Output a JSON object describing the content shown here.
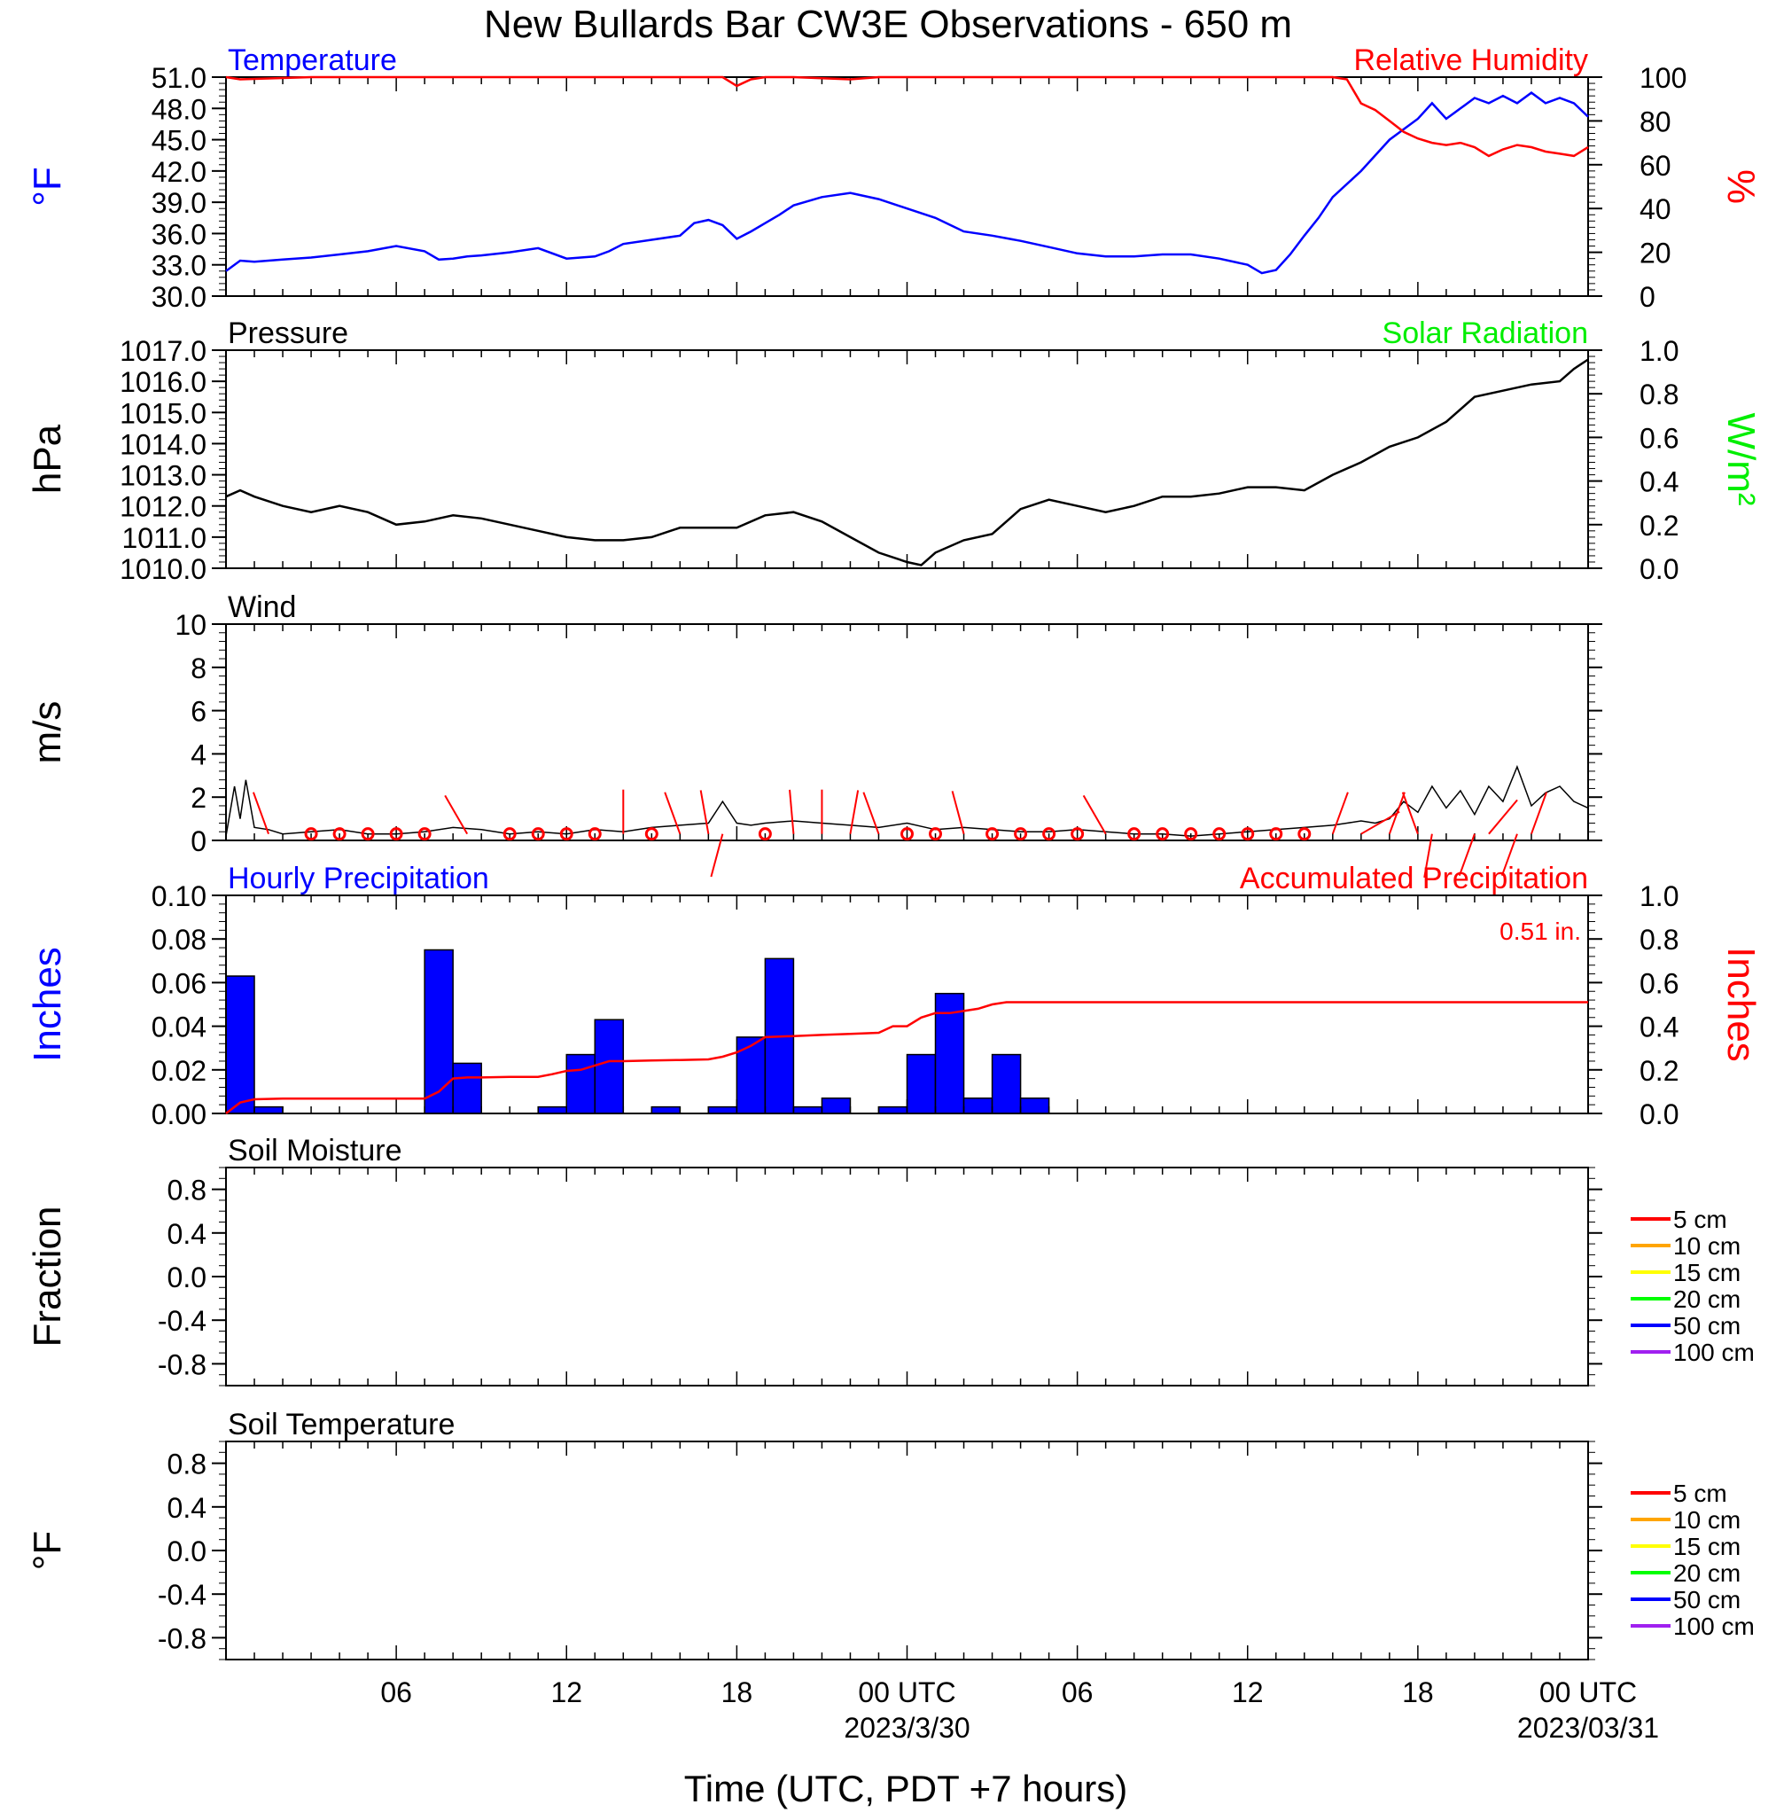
{
  "title": "New Bullards Bar CW3E Observations - 650 m",
  "xlabel": "Time (UTC, PDT +7 hours)",
  "time_axis": {
    "start": "2023-03-29 01:00 UTC",
    "end": "2023-03-31 01:00 UTC",
    "tick_labels": [
      {
        "hour": 6,
        "label": "06",
        "sublabel": ""
      },
      {
        "hour": 12,
        "label": "12",
        "sublabel": ""
      },
      {
        "hour": 18,
        "label": "18",
        "sublabel": ""
      },
      {
        "hour": 24,
        "label": "00 UTC",
        "sublabel": "2023/3/30"
      },
      {
        "hour": 30,
        "label": "06",
        "sublabel": ""
      },
      {
        "hour": 36,
        "label": "12",
        "sublabel": ""
      },
      {
        "hour": 42,
        "label": "18",
        "sublabel": ""
      },
      {
        "hour": 48,
        "label": "00 UTC",
        "sublabel": "2023/03/31"
      }
    ]
  },
  "colors": {
    "temperature": "#0000ff",
    "humidity": "#ff0000",
    "pressure": "#000000",
    "solar": "#00ee00",
    "wind": "#000000",
    "wind_barb": "#ff0000",
    "precip_bar": "#0000ff",
    "accum": "#ff0000"
  },
  "chart_data": [
    {
      "id": "temp_rh",
      "type": "line",
      "title_left": "Temperature",
      "title_right": "Relative Humidity",
      "ylabel_left": "°F",
      "ylabel_right": "%",
      "ylim_left": [
        30,
        51
      ],
      "yticks_left": [
        "30.0",
        "33.0",
        "36.0",
        "39.0",
        "42.0",
        "45.0",
        "48.0",
        "51.0"
      ],
      "ylim_right": [
        0,
        100
      ],
      "yticks_right": [
        "0",
        "20",
        "40",
        "60",
        "80",
        "100"
      ],
      "series": [
        {
          "name": "Temperature",
          "axis": "left",
          "x": [
            0,
            0.5,
            1,
            2,
            3,
            4,
            5,
            6,
            7,
            7.5,
            8,
            8.5,
            9,
            10,
            11,
            12,
            13,
            13.5,
            14,
            15,
            16,
            16.5,
            17,
            17.5,
            18,
            18.5,
            19,
            19.5,
            20,
            21,
            22,
            23,
            24,
            25,
            26,
            27,
            28,
            29,
            30,
            31,
            32,
            33,
            34,
            35,
            36,
            36.5,
            37,
            37.5,
            38,
            38.5,
            39,
            40,
            41,
            42,
            42.5,
            43,
            43.5,
            44,
            44.5,
            45,
            45.5,
            46,
            46.5,
            47,
            47.5,
            48
          ],
          "y": [
            32.4,
            33.4,
            33.3,
            33.5,
            33.7,
            34.0,
            34.3,
            34.8,
            34.3,
            33.5,
            33.6,
            33.8,
            33.9,
            34.2,
            34.6,
            33.6,
            33.8,
            34.3,
            35.0,
            35.4,
            35.8,
            37.0,
            37.3,
            36.8,
            35.5,
            36.2,
            37.0,
            37.8,
            38.7,
            39.5,
            39.9,
            39.3,
            38.4,
            37.5,
            36.2,
            35.8,
            35.3,
            34.7,
            34.1,
            33.8,
            33.8,
            34.0,
            34.0,
            33.6,
            33.0,
            32.2,
            32.5,
            34.0,
            35.8,
            37.5,
            39.5,
            42.0,
            45.0,
            47.0,
            48.5,
            47.0,
            48.0,
            49.0,
            48.5,
            49.2,
            48.5,
            49.5,
            48.5,
            49.0,
            48.5,
            47.2
          ]
        },
        {
          "name": "Relative Humidity",
          "axis": "right",
          "x": [
            0,
            0.5,
            3,
            5,
            6,
            10,
            17.5,
            18,
            18.5,
            19,
            20,
            22,
            23,
            24,
            26,
            30,
            35,
            38,
            39,
            39.5,
            40,
            40.5,
            41,
            41.5,
            42,
            42.5,
            43,
            43.5,
            44,
            44.5,
            45,
            45.5,
            46,
            46.5,
            47,
            47.5,
            48
          ],
          "y": [
            100,
            99,
            100,
            100,
            100,
            100,
            100,
            96,
            99,
            100,
            100,
            99,
            100,
            100,
            100,
            100,
            100,
            100,
            100,
            99,
            88,
            85,
            80,
            75,
            72,
            70,
            69,
            70,
            68,
            64,
            67,
            69,
            68,
            66,
            65,
            64,
            68
          ]
        }
      ]
    },
    {
      "id": "pressure",
      "type": "line",
      "title_left": "Pressure",
      "title_right": "Solar Radiation",
      "ylabel_left": "hPa",
      "ylabel_right": "W/m2",
      "ylim_left": [
        1010,
        1017
      ],
      "yticks_left": [
        "1010.0",
        "1011.0",
        "1012.0",
        "1013.0",
        "1014.0",
        "1015.0",
        "1016.0",
        "1017.0"
      ],
      "ylim_right": [
        0,
        1
      ],
      "yticks_right": [
        "0.0",
        "0.2",
        "0.4",
        "0.6",
        "0.8",
        "1.0"
      ],
      "series": [
        {
          "name": "Pressure",
          "axis": "left",
          "x": [
            0,
            0.5,
            1,
            2,
            3,
            4,
            5,
            6,
            7,
            8,
            9,
            10,
            11,
            12,
            13,
            14,
            15,
            16,
            17,
            18,
            19,
            20,
            21,
            22,
            23,
            24,
            24.5,
            25,
            26,
            27,
            27.5,
            28,
            29,
            30,
            31,
            32,
            33,
            34,
            35,
            36,
            37,
            38,
            39,
            40,
            41,
            42,
            43,
            44,
            45,
            46,
            47,
            47.5,
            48
          ],
          "y": [
            1012.3,
            1012.5,
            1012.3,
            1012.0,
            1011.8,
            1012.0,
            1011.8,
            1011.4,
            1011.5,
            1011.7,
            1011.6,
            1011.4,
            1011.2,
            1011.0,
            1010.9,
            1010.9,
            1011.0,
            1011.3,
            1011.3,
            1011.3,
            1011.7,
            1011.8,
            1011.5,
            1011.0,
            1010.5,
            1010.2,
            1010.1,
            1010.5,
            1010.9,
            1011.1,
            1011.5,
            1011.9,
            1012.2,
            1012.0,
            1011.8,
            1012.0,
            1012.3,
            1012.3,
            1012.4,
            1012.6,
            1012.6,
            1012.5,
            1013.0,
            1013.4,
            1013.9,
            1014.2,
            1014.7,
            1015.5,
            1015.7,
            1015.9,
            1016.0,
            1016.4,
            1016.7
          ]
        }
      ]
    },
    {
      "id": "wind",
      "type": "line",
      "title_left": "Wind",
      "ylabel_left": "m/s",
      "ylim_left": [
        0,
        10
      ],
      "yticks_left": [
        "0",
        "2",
        "4",
        "6",
        "8",
        "10"
      ],
      "series": [
        {
          "name": "Wind speed",
          "axis": "left",
          "x": [
            0,
            0.3,
            0.5,
            0.7,
            1,
            1.5,
            2,
            3,
            4,
            5,
            6,
            7,
            8,
            9,
            10,
            11,
            12,
            13,
            14,
            15,
            16,
            17,
            17.5,
            18,
            18.5,
            19,
            20,
            21,
            22,
            23,
            24,
            25,
            26,
            27,
            28,
            29,
            30,
            31,
            32,
            33,
            34,
            35,
            36,
            37,
            38,
            39,
            39.5,
            40,
            40.5,
            41,
            41.5,
            42,
            42.5,
            43,
            43.5,
            44,
            44.5,
            45,
            45.5,
            46,
            46.5,
            47,
            47.5,
            48
          ],
          "y": [
            0.2,
            2.5,
            1.0,
            2.8,
            0.6,
            0.5,
            0.3,
            0.4,
            0.5,
            0.3,
            0.3,
            0.4,
            0.6,
            0.5,
            0.3,
            0.4,
            0.3,
            0.5,
            0.4,
            0.6,
            0.7,
            0.8,
            1.8,
            0.8,
            0.7,
            0.8,
            0.9,
            0.8,
            0.7,
            0.6,
            0.8,
            0.5,
            0.6,
            0.5,
            0.4,
            0.4,
            0.5,
            0.4,
            0.3,
            0.3,
            0.2,
            0.3,
            0.4,
            0.5,
            0.6,
            0.7,
            0.8,
            0.9,
            0.8,
            1.0,
            1.8,
            1.3,
            2.5,
            1.5,
            2.3,
            1.2,
            2.5,
            1.8,
            3.4,
            1.6,
            2.2,
            2.5,
            1.8,
            1.5
          ]
        }
      ],
      "barbs": [
        {
          "x": 1.5,
          "dir": 340
        },
        {
          "x": 3,
          "calm": true
        },
        {
          "x": 4,
          "calm": true
        },
        {
          "x": 5,
          "calm": true
        },
        {
          "x": 6,
          "calm": true
        },
        {
          "x": 7,
          "calm": true
        },
        {
          "x": 8.5,
          "dir": 330
        },
        {
          "x": 10,
          "calm": true
        },
        {
          "x": 11,
          "calm": true
        },
        {
          "x": 12,
          "calm": true
        },
        {
          "x": 13,
          "calm": true
        },
        {
          "x": 14,
          "dir": 360
        },
        {
          "x": 15,
          "calm": true
        },
        {
          "x": 16,
          "dir": 340
        },
        {
          "x": 17,
          "dir": 350
        },
        {
          "x": 17.5,
          "dir": 195
        },
        {
          "x": 19,
          "calm": true
        },
        {
          "x": 20,
          "dir": 355
        },
        {
          "x": 21,
          "dir": 360
        },
        {
          "x": 22,
          "dir": 10
        },
        {
          "x": 23,
          "dir": 340
        },
        {
          "x": 24,
          "calm": true
        },
        {
          "x": 25,
          "calm": true
        },
        {
          "x": 26,
          "dir": 345
        },
        {
          "x": 27,
          "calm": true
        },
        {
          "x": 28,
          "calm": true
        },
        {
          "x": 29,
          "calm": true
        },
        {
          "x": 30,
          "calm": true
        },
        {
          "x": 31,
          "dir": 330
        },
        {
          "x": 32,
          "calm": true
        },
        {
          "x": 33,
          "calm": true
        },
        {
          "x": 34,
          "calm": true
        },
        {
          "x": 35,
          "calm": true
        },
        {
          "x": 36,
          "calm": true
        },
        {
          "x": 37,
          "calm": true
        },
        {
          "x": 38,
          "calm": true
        },
        {
          "x": 39,
          "dir": 20
        },
        {
          "x": 40,
          "dir": 60
        },
        {
          "x": 41,
          "dir": 20
        },
        {
          "x": 42,
          "dir": 340
        },
        {
          "x": 42.5,
          "dir": 190
        },
        {
          "x": 44,
          "dir": 200
        },
        {
          "x": 44.5,
          "dir": 40
        },
        {
          "x": 45.5,
          "dir": 200
        },
        {
          "x": 46,
          "dir": 20
        }
      ]
    },
    {
      "id": "precip",
      "type": "bar",
      "title_left": "Hourly Precipitation",
      "title_right": "Accumulated Precipitation",
      "total_label": "0.51 in.",
      "ylabel_left": "Inches",
      "ylabel_right": "Inches",
      "ylim_left": [
        0,
        0.1
      ],
      "yticks_left": [
        "0.00",
        "0.02",
        "0.04",
        "0.06",
        "0.08",
        "0.10"
      ],
      "ylim_right": [
        0,
        1
      ],
      "yticks_right": [
        "0.0",
        "0.2",
        "0.4",
        "0.6",
        "0.8",
        "1.0"
      ],
      "series": [
        {
          "name": "Hourly Precipitation",
          "axis": "left",
          "x": [
            0,
            1,
            7,
            8,
            11,
            12,
            13,
            15,
            17,
            18,
            19,
            20,
            21,
            23,
            24,
            25,
            26,
            27,
            28
          ],
          "values": [
            0.063,
            0.003,
            0.075,
            0.023,
            0.003,
            0.027,
            0.043,
            0.003,
            0.003,
            0.035,
            0.071,
            0.003,
            0.007,
            0.003,
            0.027,
            0.055,
            0.007,
            0.027,
            0.007
          ]
        },
        {
          "name": "Accumulated Precipitation",
          "axis": "right",
          "x": [
            0,
            0.5,
            1,
            2,
            7,
            7.5,
            8,
            8.5,
            9,
            10,
            11,
            11.5,
            12,
            12.5,
            13,
            13.5,
            14,
            15,
            16,
            17,
            17.5,
            18,
            18.5,
            19,
            20,
            21,
            22,
            23,
            23.5,
            24,
            24.5,
            25,
            25.5,
            26,
            26.5,
            27,
            27.5,
            28,
            48
          ],
          "y": [
            0.0,
            0.05,
            0.065,
            0.068,
            0.068,
            0.1,
            0.16,
            0.165,
            0.165,
            0.168,
            0.168,
            0.18,
            0.195,
            0.2,
            0.22,
            0.24,
            0.24,
            0.243,
            0.245,
            0.248,
            0.26,
            0.28,
            0.31,
            0.35,
            0.355,
            0.36,
            0.365,
            0.37,
            0.4,
            0.4,
            0.44,
            0.46,
            0.46,
            0.47,
            0.48,
            0.5,
            0.51,
            0.51,
            0.51
          ]
        }
      ]
    },
    {
      "id": "soil_moisture",
      "type": "line",
      "title_left": "Soil Moisture",
      "ylabel_left": "Fraction",
      "ylim_left": [
        -1,
        1
      ],
      "yticks_left": [
        "-0.8",
        "-0.4",
        "0.0",
        "0.4",
        "0.8"
      ],
      "legend": [
        "5 cm",
        "10 cm",
        "15 cm",
        "20 cm",
        "50 cm",
        "100 cm"
      ],
      "legend_colors": [
        "#ff0000",
        "#ffa500",
        "#ffff00",
        "#00ff00",
        "#0000ff",
        "#a020f0"
      ],
      "series": []
    },
    {
      "id": "soil_temp",
      "type": "line",
      "title_left": "Soil Temperature",
      "ylabel_left": "°F",
      "ylim_left": [
        -1,
        1
      ],
      "yticks_left": [
        "-0.8",
        "-0.4",
        "0.0",
        "0.4",
        "0.8"
      ],
      "legend": [
        "5 cm",
        "10 cm",
        "15 cm",
        "20 cm",
        "50 cm",
        "100 cm"
      ],
      "legend_colors": [
        "#ff0000",
        "#ffa500",
        "#ffff00",
        "#00ff00",
        "#0000ff",
        "#a020f0"
      ],
      "series": []
    }
  ]
}
